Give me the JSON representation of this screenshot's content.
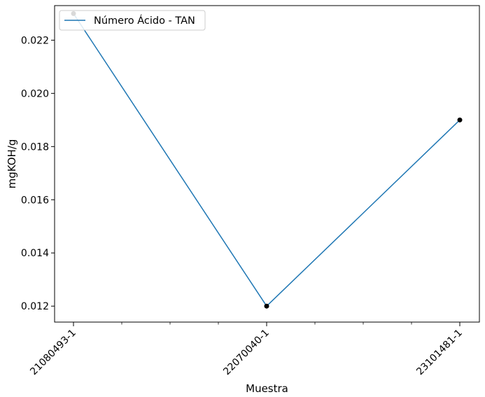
{
  "chart_data": {
    "type": "line",
    "categories": [
      "21080493-1",
      "22070040-1",
      "23101481-1"
    ],
    "series": [
      {
        "name": "Número Ácido - TAN",
        "values": [
          0.023,
          0.012,
          0.019
        ],
        "color": "#1f77b4"
      }
    ],
    "marker_color": "#000000",
    "xlabel": "Muestra",
    "ylabel": "mgKOH/g",
    "ylim": [
      0.0114,
      0.0233
    ],
    "yticks": [
      0.012,
      0.014,
      0.016,
      0.018,
      0.02,
      0.022
    ],
    "ytick_labels": [
      "0.012",
      "0.014",
      "0.016",
      "0.018",
      "0.020",
      "0.022"
    ],
    "minor_xticks_between": 3,
    "grid": false,
    "legend_position": "top-left"
  }
}
